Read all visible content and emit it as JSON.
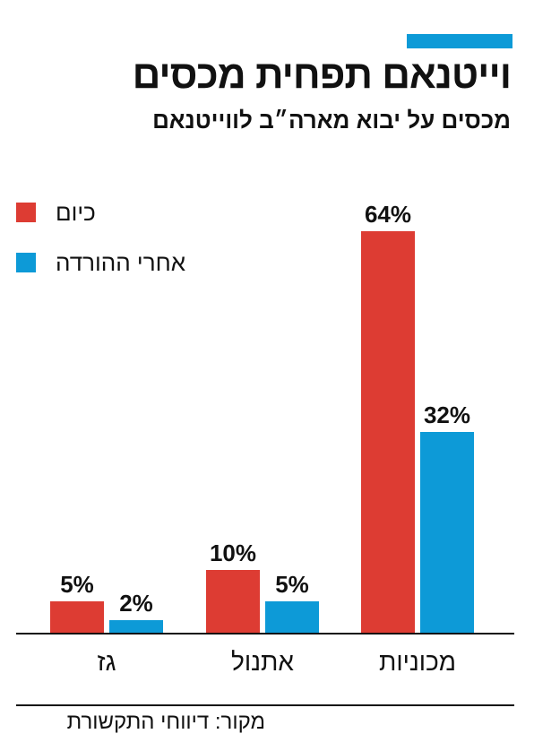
{
  "title": "וייטנאם תפחית מכסים",
  "subtitle": "מכסים על יבוא מארה״ב לווייטנאם",
  "source": "מקור: דיווחי התקשורת",
  "colors": {
    "today": "#dd3c33",
    "after": "#0d9ad7",
    "accent": "#0d9ad7",
    "text": "#111111"
  },
  "legend": [
    {
      "label": "כיום",
      "color": "#dd3c33"
    },
    {
      "label": "אחרי ההורדה",
      "color": "#0d9ad7"
    }
  ],
  "chart_data": {
    "type": "bar",
    "categories": [
      "גז",
      "אתנול",
      "מכוניות"
    ],
    "series": [
      {
        "name": "כיום",
        "values": [
          5,
          10,
          64
        ],
        "labels": [
          "5%",
          "10%",
          "64%"
        ]
      },
      {
        "name": "אחרי ההורדה",
        "values": [
          2,
          5,
          32
        ],
        "labels": [
          "2%",
          "5%",
          "32%"
        ]
      }
    ],
    "ylim": [
      0,
      64
    ],
    "grid": false,
    "legend_position": "top-left",
    "title": "וייטנאם תפחית מכסים",
    "subtitle": "מכסים על יבוא מארה״ב לווייטנאם"
  }
}
